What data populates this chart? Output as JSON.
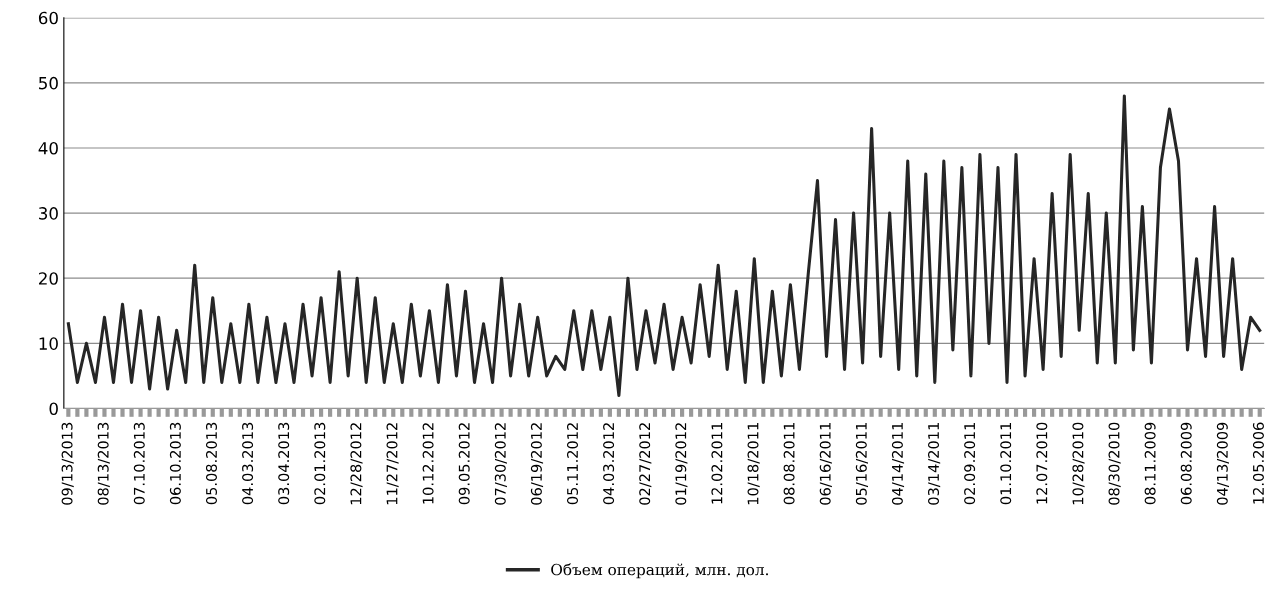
{
  "chart_data": {
    "type": "line",
    "categories": [
      "09/13/2013",
      null,
      null,
      null,
      "08/13/2013",
      null,
      null,
      null,
      "07.10.2013",
      null,
      null,
      null,
      "06.10.2013",
      null,
      null,
      null,
      "05.08.2013",
      null,
      null,
      null,
      "04.03.2013",
      null,
      null,
      null,
      "03.04.2013",
      null,
      null,
      null,
      "02.01.2013",
      null,
      null,
      null,
      "12/28/2012",
      null,
      null,
      null,
      "11/27/2012",
      null,
      null,
      null,
      "10.12.2012",
      null,
      null,
      null,
      "09.05.2012",
      null,
      null,
      null,
      "07/30/2012",
      null,
      null,
      null,
      "06/19/2012",
      null,
      null,
      null,
      "05.11.2012",
      null,
      null,
      null,
      "04.03.2012",
      null,
      null,
      null,
      "02/27/2012",
      null,
      null,
      null,
      "01/19/2012",
      null,
      null,
      null,
      "12.02.2011",
      null,
      null,
      null,
      "10/18/2011",
      null,
      null,
      null,
      "08.08.2011",
      null,
      null,
      null,
      "06/16/2011",
      null,
      null,
      null,
      "05/16/2011",
      null,
      null,
      null,
      "04/14/2011",
      null,
      null,
      null,
      "03/14/2011",
      null,
      null,
      null,
      "02.09.2011",
      null,
      null,
      null,
      "01.10.2011",
      null,
      null,
      null,
      "12.07.2010",
      null,
      null,
      null,
      "10/28/2010",
      null,
      null,
      null,
      "08/30/2010",
      null,
      null,
      null,
      "08.11.2009",
      null,
      null,
      null,
      "06.08.2009",
      null,
      null,
      null,
      "04/13/2009",
      null,
      null,
      null,
      "12.05.2006"
    ],
    "series": [
      {
        "name": "Объем операций, млн. дол.",
        "color": "#262626",
        "values": [
          13,
          4,
          10,
          4,
          14,
          4,
          16,
          4,
          15,
          3,
          14,
          3,
          12,
          4,
          22,
          4,
          17,
          4,
          13,
          4,
          16,
          4,
          14,
          4,
          13,
          4,
          16,
          5,
          17,
          4,
          21,
          5,
          20,
          4,
          17,
          4,
          13,
          4,
          16,
          5,
          15,
          4,
          19,
          5,
          18,
          4,
          13,
          4,
          20,
          5,
          16,
          5,
          14,
          5,
          8,
          6,
          15,
          6,
          15,
          6,
          14,
          2,
          20,
          6,
          15,
          7,
          16,
          6,
          14,
          7,
          19,
          8,
          22,
          6,
          18,
          4,
          23,
          4,
          18,
          5,
          19,
          6,
          21,
          35,
          8,
          29,
          6,
          30,
          7,
          43,
          8,
          30,
          6,
          38,
          5,
          36,
          4,
          38,
          9,
          37,
          5,
          39,
          10,
          37,
          4,
          39,
          5,
          23,
          6,
          33,
          8,
          39,
          12,
          33,
          7,
          30,
          7,
          48,
          9,
          31,
          7,
          37,
          46,
          38,
          9,
          23,
          8,
          31,
          8,
          23,
          6,
          14,
          12
        ]
      }
    ],
    "ylim": [
      0,
      60
    ],
    "yticks": [
      0,
      10,
      20,
      30,
      40,
      50,
      60
    ],
    "grid": "y",
    "legend": "bottom",
    "marker": "none",
    "line_style": "solid"
  }
}
